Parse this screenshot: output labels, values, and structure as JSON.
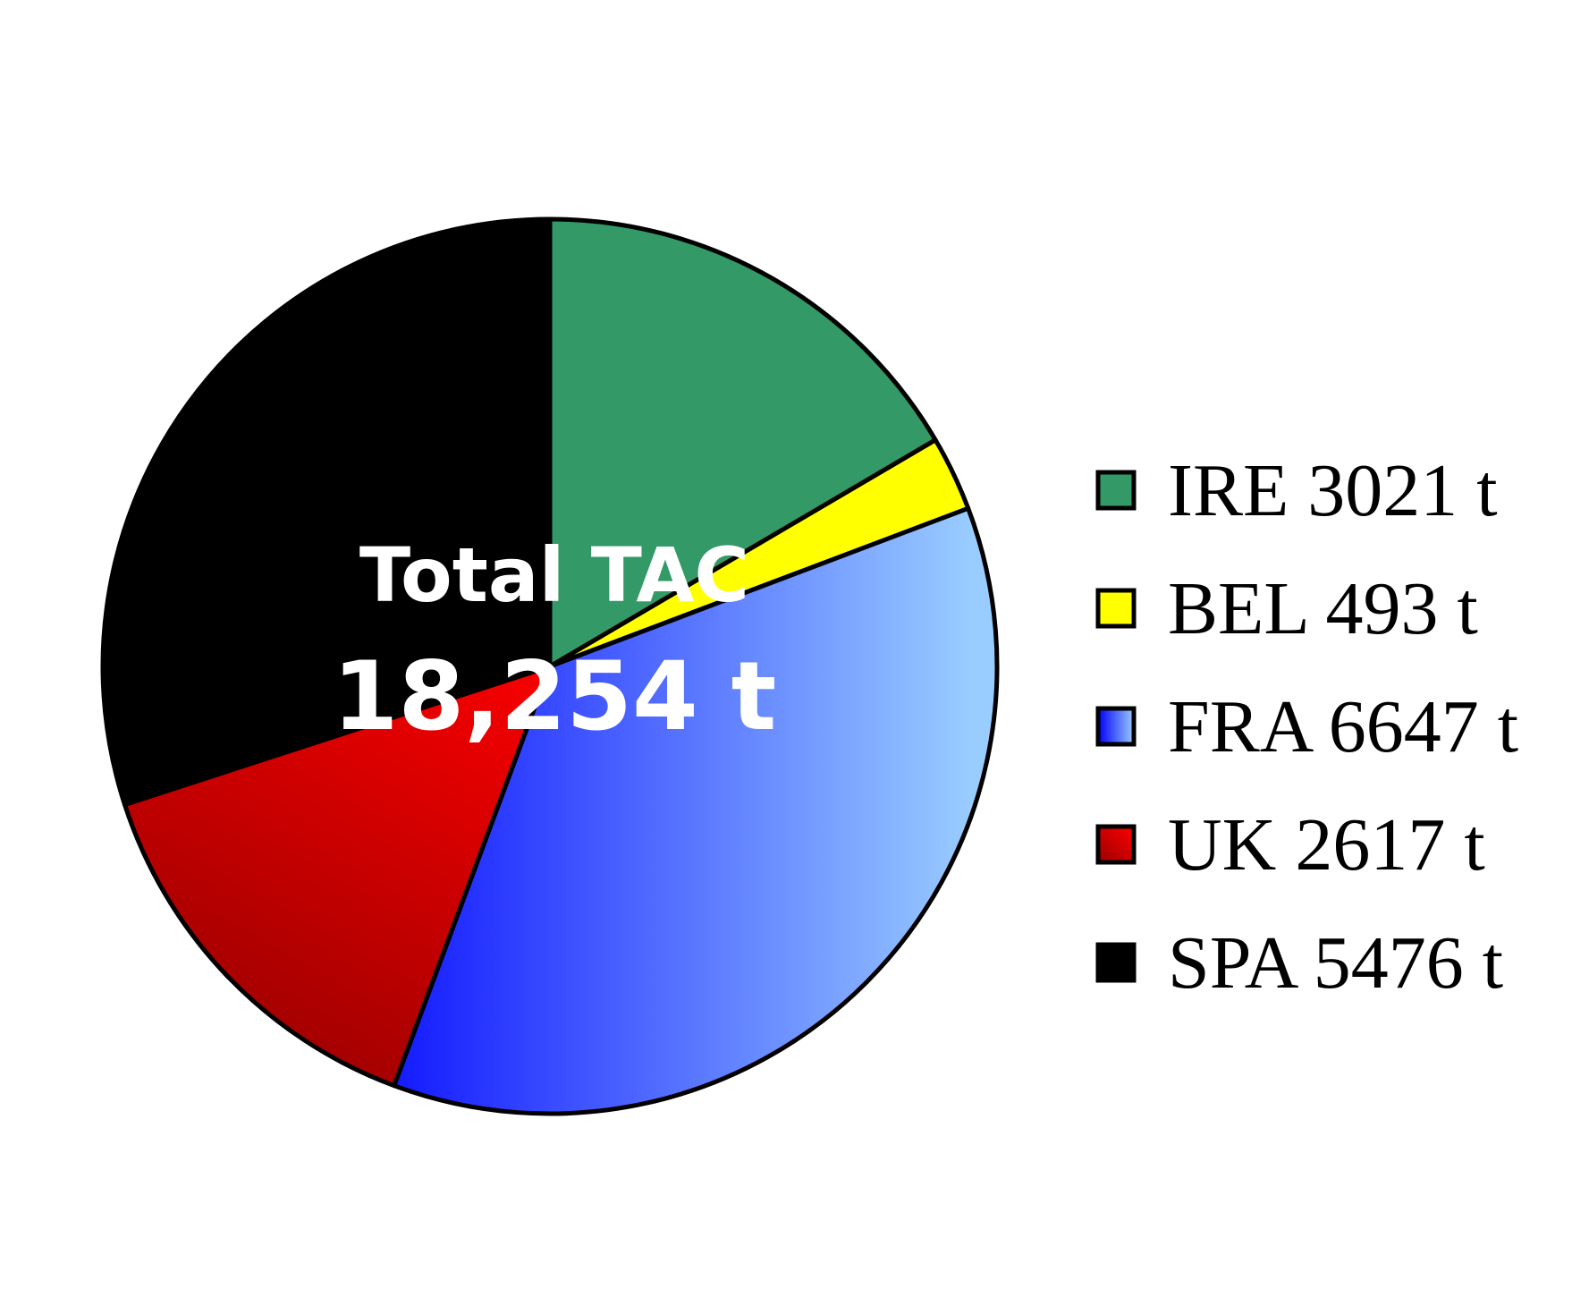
{
  "chart_data": {
    "type": "pie",
    "unit": "t",
    "center_label": {
      "line1": "Total TAC",
      "line2": "18,254 t"
    },
    "legend_position": "right",
    "start_angle_deg": 0,
    "direction": "clockwise",
    "slices": [
      {
        "key": "IRE",
        "label": "IRE 3021 t",
        "value": 3021,
        "color": "#339966",
        "color_light": "#339966"
      },
      {
        "key": "BEL",
        "label": "BEL 493 t",
        "value": 493,
        "color": "#ffff00",
        "color_light": "#ffff00"
      },
      {
        "key": "FRA",
        "label": "FRA 6647 t",
        "value": 6647,
        "color": "#0000ff",
        "color_light": "#99ccff"
      },
      {
        "key": "UK",
        "label": "UK 2617 t",
        "value": 2617,
        "color": "#990000",
        "color_light": "#ff0000"
      },
      {
        "key": "SPA",
        "label": "SPA 5476 t",
        "value": 5476,
        "color": "#000000",
        "color_light": "#000000"
      }
    ]
  }
}
